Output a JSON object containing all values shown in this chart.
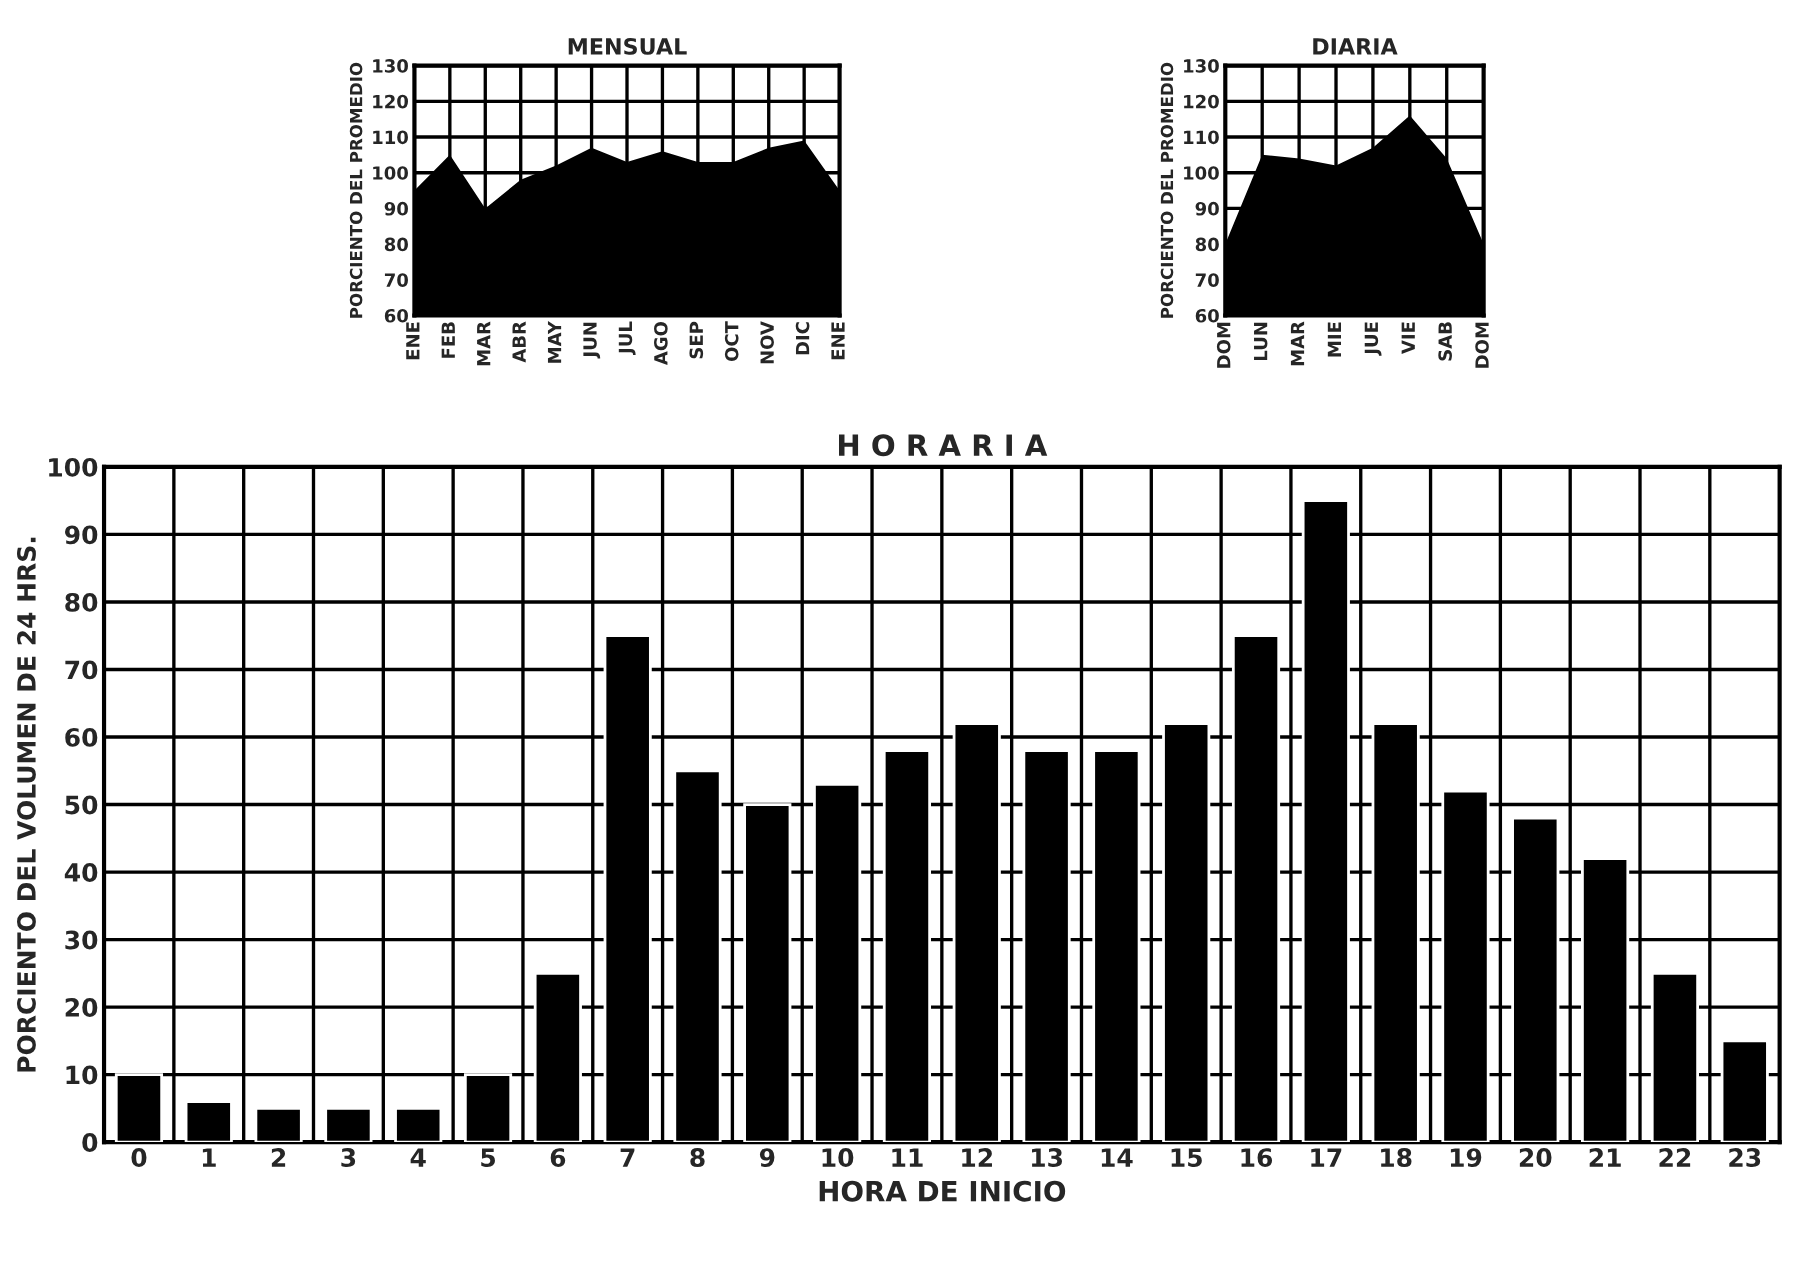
{
  "chart_data": [
    {
      "type": "area",
      "title": "MENSUAL",
      "ylabel": "PORCIENTO DEL PROMEDIO",
      "categories": [
        "ENE",
        "FEB",
        "MAR",
        "ABR",
        "MAY",
        "JUN",
        "JUL",
        "AGO",
        "SEP",
        "OCT",
        "NOV",
        "DIC",
        "ENE"
      ],
      "series": [
        {
          "color": "#000000",
          "values": [
            95,
            105,
            90,
            98,
            102,
            107,
            103,
            106,
            103,
            103,
            107,
            109,
            95
          ]
        }
      ],
      "ylim": [
        60,
        130
      ],
      "yticks": [
        60,
        70,
        80,
        90,
        100,
        110,
        120,
        130
      ],
      "grid": true
    },
    {
      "type": "area",
      "title": "DIARIA",
      "ylabel": "PORCIENTO DEL PROMEDIO",
      "categories": [
        "DOM",
        "LUN",
        "MAR",
        "MIE",
        "JUE",
        "VIE",
        "SAB",
        "DOM"
      ],
      "series": [
        {
          "color": "#000000",
          "values": [
            80,
            105,
            104,
            102,
            107,
            116,
            104,
            80
          ]
        }
      ],
      "ylim": [
        60,
        130
      ],
      "yticks": [
        60,
        70,
        80,
        90,
        100,
        110,
        120,
        130
      ],
      "grid": true
    },
    {
      "type": "bar",
      "title": "H O R A R I A",
      "xlabel": "HORA DE INICIO",
      "ylabel": "PORCIENTO DEL VOLUMEN DE 24 HRS.",
      "categories": [
        "0",
        "1",
        "2",
        "3",
        "4",
        "5",
        "6",
        "7",
        "8",
        "9",
        "10",
        "11",
        "12",
        "13",
        "14",
        "15",
        "16",
        "17",
        "18",
        "19",
        "20",
        "21",
        "22",
        "23"
      ],
      "series": [
        {
          "color": "#000000",
          "values": [
            10,
            6,
            5,
            5,
            5,
            10,
            25,
            75,
            55,
            50,
            53,
            58,
            62,
            58,
            58,
            62,
            75,
            95,
            62,
            52,
            48,
            42,
            25,
            15
          ]
        }
      ],
      "ylim": [
        0,
        100
      ],
      "yticks": [
        0,
        10,
        20,
        30,
        40,
        50,
        60,
        70,
        80,
        90,
        100
      ],
      "grid": true
    }
  ]
}
